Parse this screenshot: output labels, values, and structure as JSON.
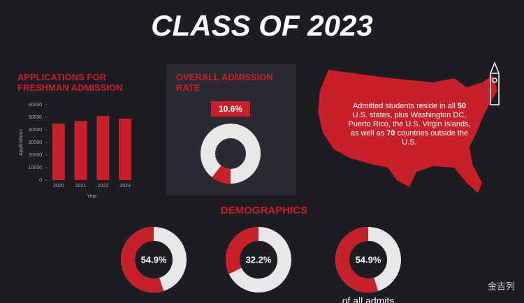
{
  "title": "CLASS OF 2023",
  "chart_data": [
    {
      "type": "bar",
      "title": "APPLICATIONS FOR FRESHMAN ADMISSION",
      "x_label": "Year",
      "y_label": "Applications",
      "categories": [
        "2020",
        "2021",
        "2022",
        "2023"
      ],
      "values": [
        45000,
        47000,
        51000,
        49000
      ],
      "color": "#c8202a",
      "ylim": [
        0,
        60000
      ],
      "yticks": [
        0,
        10000,
        20000,
        30000,
        40000,
        50000,
        60000
      ]
    },
    {
      "type": "donut",
      "title": "OVERALL ADMISSION RATE",
      "values": [
        10.6
      ],
      "value_labels": [
        "10.6%"
      ],
      "color": "#c8202a",
      "direction": "clockwise"
    },
    {
      "type": "donut",
      "title": "DEMOGRAPHICS",
      "values": [
        54.9,
        32.2,
        54.9
      ],
      "value_labels": [
        "54.9%",
        "32.2%",
        "54.9%"
      ],
      "captions": [
        null,
        null,
        "of all admits"
      ],
      "color": "#c8202a",
      "direction": "counterclockwise"
    }
  ],
  "map_note": {
    "parts": [
      "Admitted students reside in all ",
      "50",
      " U.S. states, plus Washington DC, Puerto Rico, the U.S. Virgin Islands, as well as ",
      "70",
      " countries outside the U.S."
    ]
  },
  "watermark": "金吉列"
}
